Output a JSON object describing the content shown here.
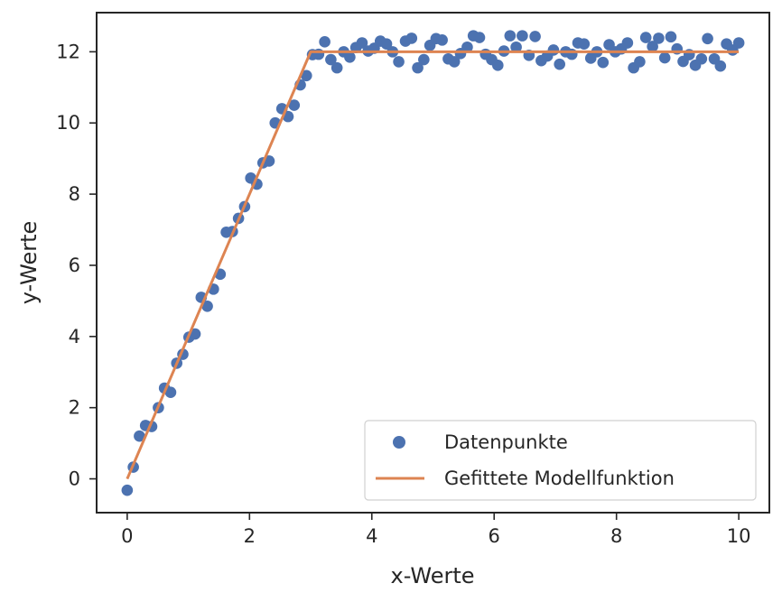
{
  "chart_data": {
    "type": "scatter",
    "title": "",
    "xlabel": "x-Werte",
    "ylabel": "y-Werte",
    "xlim": [
      -0.5,
      10.5
    ],
    "ylim": [
      -0.95,
      13.1
    ],
    "xticks": [
      0,
      2,
      4,
      6,
      8,
      10
    ],
    "yticks": [
      0,
      2,
      4,
      6,
      8,
      10,
      12
    ],
    "xtick_labels": [
      "0",
      "2",
      "4",
      "6",
      "8",
      "10"
    ],
    "ytick_labels": [
      "0",
      "2",
      "4",
      "6",
      "8",
      "10",
      "12"
    ],
    "grid": false,
    "legend_position": "lower-right",
    "series": [
      {
        "name": "Datenpunkte",
        "kind": "scatter",
        "color": "#4c72b0",
        "x": [
          0.0,
          0.1,
          0.2,
          0.3,
          0.4,
          0.51,
          0.61,
          0.71,
          0.81,
          0.91,
          1.01,
          1.11,
          1.21,
          1.31,
          1.41,
          1.52,
          1.62,
          1.72,
          1.82,
          1.92,
          2.02,
          2.12,
          2.22,
          2.32,
          2.42,
          2.53,
          2.63,
          2.73,
          2.83,
          2.93,
          3.03,
          3.13,
          3.23,
          3.33,
          3.43,
          3.54,
          3.64,
          3.74,
          3.84,
          3.94,
          4.04,
          4.14,
          4.24,
          4.34,
          4.44,
          4.55,
          4.65,
          4.75,
          4.85,
          4.95,
          5.05,
          5.15,
          5.25,
          5.35,
          5.45,
          5.56,
          5.66,
          5.76,
          5.86,
          5.96,
          6.06,
          6.16,
          6.26,
          6.36,
          6.46,
          6.57,
          6.67,
          6.77,
          6.87,
          6.97,
          7.07,
          7.17,
          7.27,
          7.37,
          7.47,
          7.58,
          7.68,
          7.78,
          7.88,
          7.98,
          8.08,
          8.18,
          8.28,
          8.38,
          8.48,
          8.59,
          8.69,
          8.79,
          8.89,
          8.99,
          9.09,
          9.19,
          9.29,
          9.39,
          9.49,
          9.6,
          9.7,
          9.8,
          9.9,
          10.0
        ],
        "y": [
          -0.32,
          0.33,
          1.2,
          1.5,
          1.47,
          2.0,
          2.55,
          2.43,
          3.25,
          3.5,
          3.98,
          4.07,
          5.1,
          4.85,
          5.33,
          5.75,
          6.93,
          6.95,
          7.32,
          7.65,
          8.45,
          8.28,
          8.88,
          8.93,
          10.0,
          10.4,
          10.18,
          10.5,
          11.07,
          11.33,
          11.92,
          11.93,
          12.28,
          11.78,
          11.55,
          12.0,
          11.85,
          12.12,
          12.25,
          12.02,
          12.1,
          12.3,
          12.22,
          12.0,
          11.72,
          12.3,
          12.38,
          11.55,
          11.78,
          12.18,
          12.37,
          12.33,
          11.8,
          11.72,
          11.95,
          12.13,
          12.45,
          12.4,
          11.93,
          11.78,
          11.62,
          12.02,
          12.45,
          12.13,
          12.45,
          11.9,
          12.43,
          11.75,
          11.88,
          12.05,
          11.65,
          12.0,
          11.93,
          12.25,
          12.22,
          11.82,
          12.0,
          11.7,
          12.2,
          12.0,
          12.08,
          12.25,
          11.55,
          11.72,
          12.4,
          12.15,
          12.38,
          11.83,
          12.42,
          12.08,
          11.73,
          11.92,
          11.62,
          11.8,
          12.37,
          11.8,
          11.6,
          12.22,
          12.05,
          12.25
        ]
      },
      {
        "name": "Gefittete Modellfunktion",
        "kind": "line",
        "color": "#dd8452",
        "x": [
          0,
          3.0,
          10
        ],
        "y": [
          0,
          12.0,
          12.0
        ]
      }
    ]
  }
}
